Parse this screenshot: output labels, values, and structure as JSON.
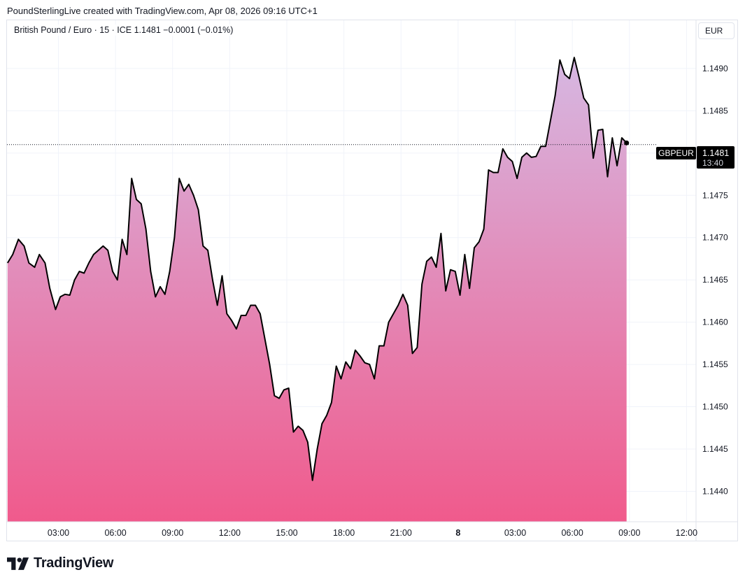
{
  "header": {
    "attribution": "PoundSterlingLive created with TradingView.com, Apr 08, 2026 09:16 UTC+1"
  },
  "legend": {
    "text": "British Pound / Euro · 15 · ICE  1.1481  −0.0001 (−0.01%)"
  },
  "currency": "EUR",
  "price_label": {
    "symbol": "GBPEUR",
    "price": "1.1481",
    "countdown": "13:40"
  },
  "branding": {
    "name": "TradingView"
  },
  "colors": {
    "line": "#000000",
    "area_top": "#d6b8e2",
    "area_bottom": "#f05a8c",
    "label_bg": "#000000",
    "grid": "#f0f3fa"
  },
  "chart_data": {
    "type": "area",
    "symbol": "GBPEUR",
    "interval": "15",
    "x_ticks": [
      "03:00",
      "06:00",
      "09:00",
      "12:00",
      "15:00",
      "18:00",
      "21:00",
      "8",
      "03:00",
      "06:00",
      "09:00",
      "12:00"
    ],
    "y_ticks": [
      "1.1440",
      "1.1445",
      "1.1450",
      "1.1455",
      "1.1460",
      "1.1465",
      "1.1470",
      "1.1475",
      "1.1480",
      "1.1485",
      "1.1490"
    ],
    "ylim": [
      1.14364,
      1.14957
    ],
    "xlim_hours": [
      0.3,
      36.5
    ],
    "last_price": 1.1481,
    "grid": true,
    "series": [
      {
        "values": [
          [
            0.33,
            1.1467
          ],
          [
            0.6,
            1.1468
          ],
          [
            0.9,
            1.14698
          ],
          [
            1.2,
            1.1469
          ],
          [
            1.45,
            1.1467
          ],
          [
            1.75,
            1.14665
          ],
          [
            2.0,
            1.1468
          ],
          [
            2.3,
            1.1467
          ],
          [
            2.55,
            1.1464
          ],
          [
            2.85,
            1.14615
          ],
          [
            3.1,
            1.1463
          ],
          [
            3.35,
            1.14633
          ],
          [
            3.6,
            1.14632
          ],
          [
            3.85,
            1.1465
          ],
          [
            4.1,
            1.1466
          ],
          [
            4.35,
            1.14658
          ],
          [
            4.6,
            1.1467
          ],
          [
            4.85,
            1.1468
          ],
          [
            5.1,
            1.14685
          ],
          [
            5.35,
            1.1469
          ],
          [
            5.6,
            1.14685
          ],
          [
            5.85,
            1.1466
          ],
          [
            6.1,
            1.1465
          ],
          [
            6.35,
            1.14698
          ],
          [
            6.6,
            1.1468
          ],
          [
            6.85,
            1.1477
          ],
          [
            7.1,
            1.14745
          ],
          [
            7.35,
            1.1474
          ],
          [
            7.6,
            1.1471
          ],
          [
            7.85,
            1.1466
          ],
          [
            8.1,
            1.1463
          ],
          [
            8.35,
            1.14642
          ],
          [
            8.6,
            1.14633
          ],
          [
            8.85,
            1.1466
          ],
          [
            9.1,
            1.147
          ],
          [
            9.35,
            1.1477
          ],
          [
            9.6,
            1.14755
          ],
          [
            9.85,
            1.14763
          ],
          [
            10.1,
            1.1475
          ],
          [
            10.35,
            1.14733
          ],
          [
            10.6,
            1.1469
          ],
          [
            10.85,
            1.14685
          ],
          [
            11.1,
            1.1465
          ],
          [
            11.35,
            1.1462
          ],
          [
            11.6,
            1.14655
          ],
          [
            11.85,
            1.1461
          ],
          [
            12.1,
            1.14602
          ],
          [
            12.35,
            1.14592
          ],
          [
            12.6,
            1.14608
          ],
          [
            12.85,
            1.14608
          ],
          [
            13.1,
            1.1462
          ],
          [
            13.35,
            1.1462
          ],
          [
            13.6,
            1.1461
          ],
          [
            13.85,
            1.1458
          ],
          [
            14.1,
            1.1455
          ],
          [
            14.35,
            1.14513
          ],
          [
            14.6,
            1.1451
          ],
          [
            14.85,
            1.1452
          ],
          [
            15.1,
            1.14522
          ],
          [
            15.35,
            1.1447
          ],
          [
            15.6,
            1.14477
          ],
          [
            15.85,
            1.14472
          ],
          [
            16.1,
            1.14458
          ],
          [
            16.35,
            1.14413
          ],
          [
            16.6,
            1.1445
          ],
          [
            16.85,
            1.1448
          ],
          [
            17.1,
            1.1449
          ],
          [
            17.35,
            1.14505
          ],
          [
            17.6,
            1.14548
          ],
          [
            17.85,
            1.14533
          ],
          [
            18.1,
            1.14553
          ],
          [
            18.35,
            1.14545
          ],
          [
            18.6,
            1.14567
          ],
          [
            18.85,
            1.1456
          ],
          [
            19.1,
            1.14552
          ],
          [
            19.35,
            1.1455
          ],
          [
            19.6,
            1.14533
          ],
          [
            19.85,
            1.14572
          ],
          [
            20.1,
            1.14572
          ],
          [
            20.35,
            1.146
          ],
          [
            20.6,
            1.1461
          ],
          [
            20.85,
            1.1462
          ],
          [
            21.1,
            1.14633
          ],
          [
            21.35,
            1.1462
          ],
          [
            21.6,
            1.14563
          ],
          [
            21.85,
            1.1457
          ],
          [
            22.1,
            1.14645
          ],
          [
            22.35,
            1.14672
          ],
          [
            22.6,
            1.14677
          ],
          [
            22.85,
            1.14665
          ],
          [
            23.1,
            1.14705
          ],
          [
            23.35,
            1.14637
          ],
          [
            23.6,
            1.14662
          ],
          [
            23.85,
            1.1466
          ],
          [
            24.1,
            1.14632
          ],
          [
            24.35,
            1.1468
          ],
          [
            24.6,
            1.1464
          ],
          [
            24.85,
            1.14688
          ],
          [
            25.1,
            1.14695
          ],
          [
            25.35,
            1.1471
          ],
          [
            25.6,
            1.1478
          ],
          [
            25.85,
            1.14777
          ],
          [
            26.1,
            1.14777
          ],
          [
            26.35,
            1.14805
          ],
          [
            26.6,
            1.14795
          ],
          [
            26.85,
            1.1479
          ],
          [
            27.1,
            1.1477
          ],
          [
            27.35,
            1.14795
          ],
          [
            27.6,
            1.148
          ],
          [
            27.85,
            1.14795
          ],
          [
            28.1,
            1.14796
          ],
          [
            28.35,
            1.14808
          ],
          [
            28.6,
            1.14808
          ],
          [
            28.85,
            1.14838
          ],
          [
            29.1,
            1.14868
          ],
          [
            29.35,
            1.1491
          ],
          [
            29.6,
            1.14893
          ],
          [
            29.85,
            1.14888
          ],
          [
            30.1,
            1.14913
          ],
          [
            30.35,
            1.1489
          ],
          [
            30.6,
            1.14865
          ],
          [
            30.85,
            1.14857
          ],
          [
            31.1,
            1.14794
          ],
          [
            31.35,
            1.14827
          ],
          [
            31.6,
            1.14828
          ],
          [
            31.85,
            1.14772
          ],
          [
            32.1,
            1.14818
          ],
          [
            32.35,
            1.14785
          ],
          [
            32.6,
            1.14818
          ],
          [
            32.85,
            1.14812
          ]
        ]
      }
    ]
  }
}
